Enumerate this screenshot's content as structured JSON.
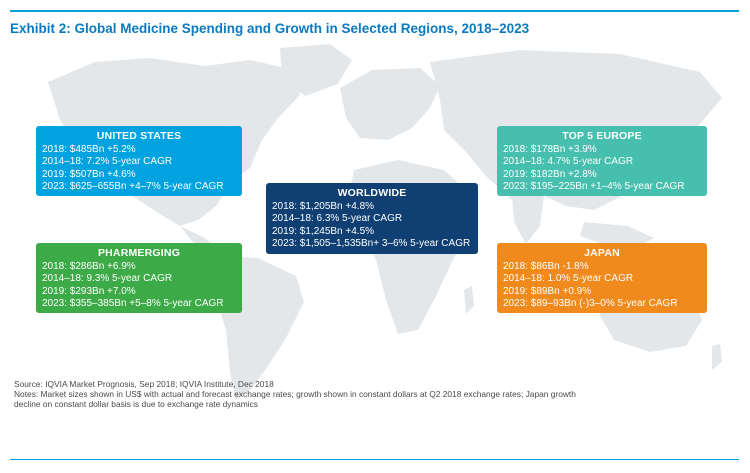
{
  "title": "Exhibit 2: Global Medicine Spending and Growth in Selected Regions, 2018–2023",
  "regions": {
    "united_states": {
      "name": "UNITED STATES",
      "lines": [
        "2018: $485Bn +5.2%",
        "2014–18: 7.2% 5-year CAGR",
        "2019: $507Bn +4.6%",
        "2023: $625–655Bn +4–7% 5-year CAGR"
      ],
      "color": "#00a3e0"
    },
    "pharmerging": {
      "name": "PHARMERGING",
      "lines": [
        "2018: $286Bn +6.9%",
        "2014–18: 9.3% 5-year CAGR",
        "2019: $293Bn +7.0%",
        "2023: $355–385Bn +5–8% 5-year CAGR"
      ],
      "color": "#3daa48"
    },
    "worldwide": {
      "name": "WORLDWIDE",
      "lines": [
        "2018: $1,205Bn +4.8%",
        "2014–18: 6.3% 5-year CAGR",
        "2019: $1,245Bn +4.5%",
        "2023: $1,505–1,535Bn+ 3–6% 5-year CAGR"
      ],
      "color": "#0f3f73"
    },
    "top5_europe": {
      "name": "TOP 5 EUROPE",
      "lines": [
        "2018: $178Bn +3.9%",
        "2014–18: 4.7% 5-year CAGR",
        "2019: $182Bn +2.8%",
        "2023: $195–225Bn +1–4% 5-year CAGR"
      ],
      "color": "#47bfae"
    },
    "japan": {
      "name": "JAPAN",
      "lines": [
        "2018: $86Bn -1.8%",
        "2014–18: 1.0% 5-year CAGR",
        "2019: $89Bn +0.9%",
        "2023: $89–93Bn (-)3–0%  5-year CAGR"
      ],
      "color": "#f08a1c"
    }
  },
  "source": {
    "line1": "Source: IQVIA Market Prognosis, Sep 2018; IQVIA Institute, Dec 2018",
    "line2": "Notes: Market sizes shown in US$ with actual and forecast exchange rates; growth shown in constant dollars at Q2 2018 exchange rates; Japan growth",
    "line3": "decline on constant dollar basis is due to exchange rate dynamics"
  },
  "colors": {
    "accent": "#00a0dd",
    "title": "#0a7ac1",
    "map": "#e3e6e9"
  }
}
